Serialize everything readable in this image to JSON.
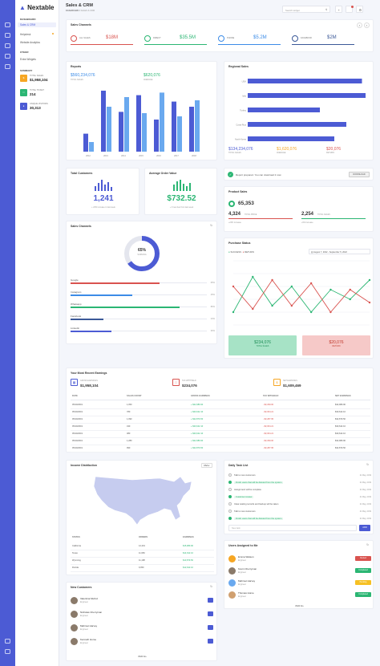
{
  "header": {
    "title": "Sales & CRM",
    "breadcrumb_root": "DASHBOARD",
    "breadcrumb_current": "SALES & CRM",
    "search_placeholder": "Search widget"
  },
  "sidebar": {
    "brand": "Nextable",
    "dashboard_heading": "DASHBOARD",
    "items": [
      "Sales & CRM",
      "Helpdesk",
      "Website Analytics"
    ],
    "other_heading": "OTHER",
    "other_items": [
      "Extra Widgets"
    ],
    "summary_heading": "SUMMARY",
    "summary": [
      {
        "label": "TOTAL SALES",
        "value": "$1,958,104",
        "color": "#f6a623"
      },
      {
        "label": "TOTAL TICKET",
        "value": "214",
        "color": "#2bb673"
      },
      {
        "label": "UNIQUE VISITORS",
        "value": "30,313",
        "color": "#4c5bd4"
      }
    ]
  },
  "sales_channels_top": {
    "title": "Sales Channels",
    "items": [
      {
        "label": "ALL SALES",
        "value": "$18M",
        "color": "#d9534f"
      },
      {
        "label": "DIRECT",
        "value": "$35.5M",
        "color": "#2bb673"
      },
      {
        "label": "PHONE",
        "value": "$5.2M",
        "color": "#3c8ce7"
      },
      {
        "label": "FACEBOOK",
        "value": "$2M",
        "color": "#3b5998"
      }
    ]
  },
  "reports": {
    "title": "Reports",
    "total_sales_value": "$560,234,076",
    "total_sales_label": "TOTAL SALES",
    "sec_value": "$620,076",
    "sec_label": "AVERAGE"
  },
  "regional": {
    "title": "Regional Sales",
    "stats": [
      {
        "value": "$134,234,076",
        "label": "TOTAL SALES",
        "color": "#4c5bd4"
      },
      {
        "value": "$1,620,076",
        "label": "AVERAGE",
        "color": "#f6a623"
      },
      {
        "value": "$20,076",
        "label": "RETURN",
        "color": "#d9534f"
      }
    ]
  },
  "total_customers": {
    "title": "Total Customers",
    "value": "1,241",
    "note": "+ 23% increase in last week"
  },
  "avg_order": {
    "title": "Average Order Value",
    "value": "$732.52",
    "note": "+ 9 new feet from last week"
  },
  "report_notice": {
    "text": "Report prepared. You can download it now",
    "button": "DOWNLOAD"
  },
  "product_sales": {
    "title": "Product Sales",
    "main_value": "65,353",
    "a_value": "4,324",
    "a_label": "TOTAL PRICE",
    "a_note": "+23% increase",
    "b_value": "2,254",
    "b_label": "TOTAL SALES",
    "b_note": "+9% increase"
  },
  "channels_donut": {
    "title": "Sales Channels",
    "center_value": "65%",
    "center_label": "SURGING",
    "bars": [
      {
        "label": "Google",
        "pct": "65%",
        "color": "#d9534f",
        "fill": 0.65
      },
      {
        "label": "Instagram",
        "pct": "45%",
        "color": "#3c8ce7",
        "fill": 0.45
      },
      {
        "label": "Whatsapp",
        "pct": "80%",
        "color": "#2bb673",
        "fill": 0.8
      },
      {
        "label": "Facebook",
        "pct": "24%",
        "color": "#3b5998",
        "fill": 0.24
      },
      {
        "label": "Linkedin",
        "pct": "30%",
        "color": "#4c5bd4",
        "fill": 0.3
      }
    ]
  },
  "purchase": {
    "title": "Purchase Status",
    "legend_a": "SUCCESS",
    "legend_b": "RETURN",
    "date_range": "August 7, 2022 - September 5, 2022",
    "green_value": "$234,076",
    "green_label": "TOTAL SALES",
    "red_value": "$20,076",
    "red_label": "RETURN"
  },
  "earnings": {
    "title": "Your Most Recent Earnings",
    "gross_label": "GROSS EARNINGS",
    "gross_value": "$1,958,104",
    "tax_label": "TAX WITHHELD",
    "tax_value": "$234,076",
    "net_label": "NET EARNINGS",
    "net_value": "$1,609,469",
    "columns": [
      "DATE",
      "SALES COUNT",
      "GROSS EARNINGS",
      "TAX WITHHELD",
      "NET EARNINGS"
    ],
    "rows": [
      [
        "05/10/2019",
        "1,050",
        "+ $32,989.90",
        "- $3,299.00",
        "$32,989.90"
      ],
      [
        "05/10/2019",
        "780",
        "+ $30,642.10",
        "- $3,064.21",
        "$30,642.10"
      ],
      [
        "05/10/2019",
        "1,090",
        "+ $32,879.50",
        "- $3,287.95",
        "$32,879.50"
      ],
      [
        "05/10/2019",
        "430",
        "+ $30,642.10",
        "- $3,064.21",
        "$30,642.10"
      ],
      [
        "05/10/2019",
        "380",
        "+ $30,642.10",
        "- $3,064.21",
        "$30,642.10"
      ],
      [
        "05/10/2019",
        "1,280",
        "+ $32,989.90",
        "- $3,299.00",
        "$32,989.90"
      ],
      [
        "05/10/2019",
        "990",
        "+ $32,879.50",
        "- $3,287.95",
        "$32,879.50"
      ]
    ]
  },
  "income": {
    "title": "Income Distribution",
    "select": "USA",
    "columns": [
      "STATES",
      "ORDERS",
      "EARNINGS"
    ],
    "rows": [
      [
        "California",
        "12,201",
        "$15,989.90"
      ],
      [
        "Texas",
        "11,950",
        "$14,642.10"
      ],
      [
        "Wyoming",
        "11,198",
        "$13,879.50"
      ],
      [
        "Florida",
        "9,050",
        "$12,642.10"
      ]
    ]
  },
  "tasks": {
    "title": "Daily Task List",
    "items": [
      {
        "text": "Talk to new customers",
        "date": "21 May, 2019",
        "done": false
      },
      {
        "text": "Finish users that will be deleted from the system",
        "date": "21 May, 2019",
        "done": true
      },
      {
        "text": "Assignment will be complete",
        "date": "21 May, 2019",
        "done": false
      },
      {
        "text": "Customer review",
        "date": "21 May, 2019",
        "done": true
      },
      {
        "text": "Clear waiting records and backup will be taken",
        "date": "21 May, 2019",
        "done": false
      },
      {
        "text": "Talk to new customers",
        "date": "21 May, 2019",
        "done": false
      },
      {
        "text": "Finish users that will be deleted from the system",
        "date": "21 May, 2019",
        "done": true
      }
    ],
    "input_placeholder": "New task",
    "add": "ADD"
  },
  "new_customers": {
    "title": "New Customers",
    "items": [
      {
        "name": "Valentina Muñoz",
        "role": "Engineer"
      },
      {
        "name": "Nicholas Cherryman",
        "role": "Engineer"
      },
      {
        "name": "Mahmet Harvey",
        "role": "Engineer"
      },
      {
        "name": "Kenneth Hume",
        "role": "Engineer"
      }
    ],
    "view_all": "VIEW ALL"
  },
  "assigned": {
    "title": "Users Assigned to Me",
    "items": [
      {
        "name": "Emma Watson",
        "role": "Engineer",
        "badge": "Denied",
        "color": "#d9534f"
      },
      {
        "name": "Kevin Cherryman",
        "role": "Engineer",
        "badge": "Completed",
        "color": "#2bb673"
      },
      {
        "name": "Mahmet Harvey",
        "role": "Engineer",
        "badge": "Pending",
        "color": "#f6c023"
      },
      {
        "name": "Thomas Hume",
        "role": "Engineer",
        "badge": "Completed",
        "color": "#2bb673"
      }
    ],
    "view_all": "VIEW ALL"
  },
  "chart_data": [
    {
      "type": "bar",
      "title": "Reports",
      "categories": [
        "2012",
        "2013",
        "2014",
        "2015",
        "2016",
        "2017",
        "2018"
      ],
      "series": [
        {
          "values": [
            28,
            95,
            62,
            88,
            50,
            78,
            70
          ]
        },
        {
          "values": [
            15,
            70,
            85,
            60,
            92,
            55,
            80
          ]
        }
      ]
    },
    {
      "type": "bar",
      "title": "Regional Sales",
      "orientation": "horizontal",
      "categories": [
        "USA",
        "Italy",
        "Turkey",
        "Costa Rica",
        "North Korea"
      ],
      "values": [
        95,
        98,
        60,
        82,
        72
      ]
    },
    {
      "type": "line",
      "title": "Purchase Status",
      "series": [
        {
          "name": "SUCCESS",
          "values": [
            20,
            75,
            30,
            60,
            20,
            55,
            40,
            70
          ]
        },
        {
          "name": "RETURN",
          "values": [
            60,
            25,
            70,
            30,
            65,
            20,
            55,
            35
          ]
        }
      ]
    }
  ]
}
